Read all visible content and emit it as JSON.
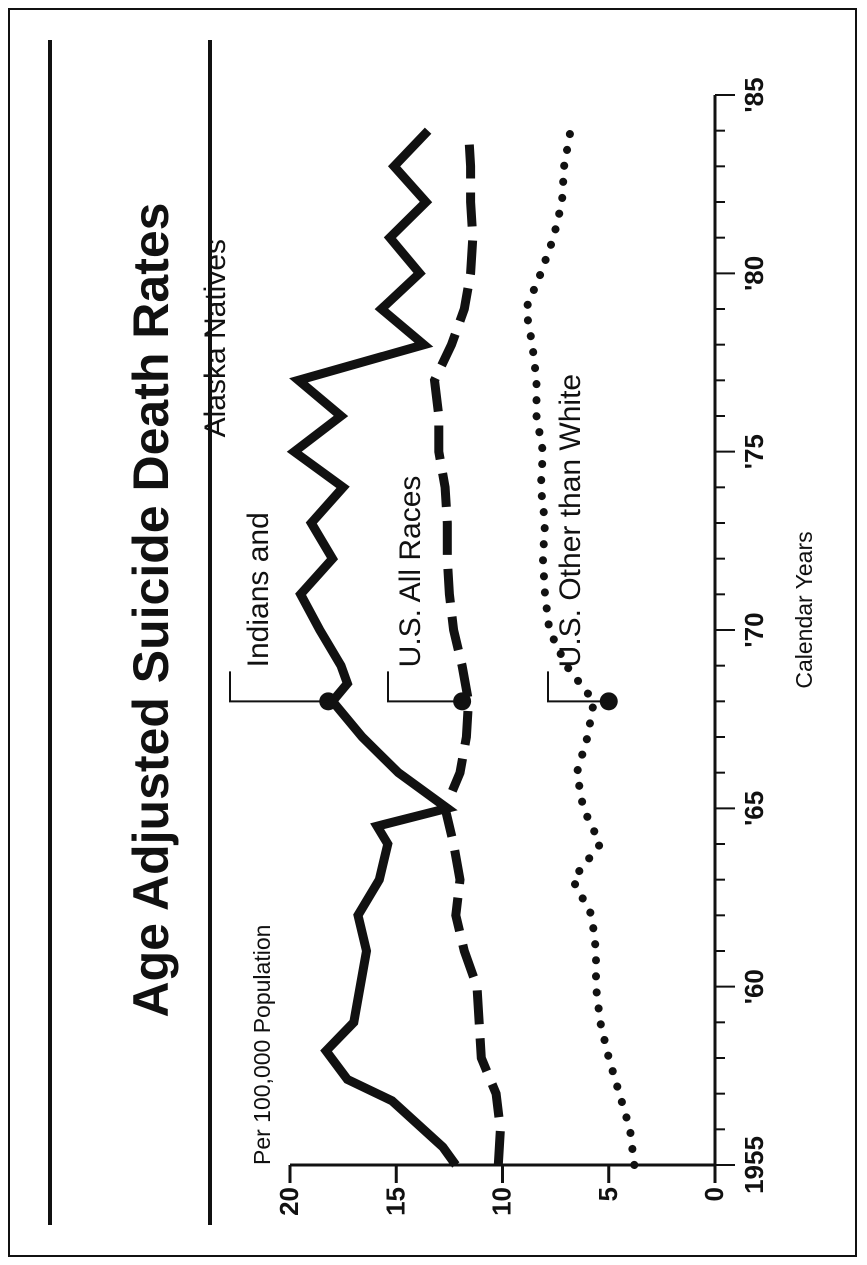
{
  "chart_data": {
    "type": "line",
    "title": "Age Adjusted Suicide Death Rates",
    "ylabel": "Per 100,000 Population",
    "xlabel": "Calendar Years",
    "xlim": [
      1955,
      1985
    ],
    "ylim": [
      0,
      20
    ],
    "x_ticks": [
      1955,
      1960,
      1965,
      1970,
      1975,
      1980,
      1985
    ],
    "x_tick_labels": [
      "1955",
      "'60",
      "'65",
      "'70",
      "'75",
      "'80",
      "'85"
    ],
    "y_ticks": [
      0,
      5,
      10,
      15,
      20
    ],
    "y_tick_labels": [
      "0",
      "5",
      "10",
      "15",
      "20"
    ],
    "grid": false,
    "series": [
      {
        "name": "Indians and Alaska Natives",
        "style": "solid",
        "label_lines": [
          "Indians and",
          "Alaska Natives"
        ],
        "x": [
          1955,
          1955.5,
          1956.8,
          1957.4,
          1958.2,
          1959,
          1961,
          1962,
          1963,
          1964,
          1964.5,
          1965,
          1966,
          1967,
          1968,
          1968.5,
          1969,
          1970,
          1971,
          1972,
          1973,
          1974,
          1975,
          1976,
          1977,
          1978,
          1979,
          1980,
          1981,
          1982,
          1983,
          1984
        ],
        "y": [
          12.2,
          12.8,
          15.2,
          17.3,
          18.3,
          17.0,
          16.4,
          16.8,
          15.8,
          15.4,
          15.9,
          12.6,
          14.9,
          16.6,
          18.0,
          17.3,
          17.6,
          18.6,
          19.5,
          18.0,
          19.0,
          17.5,
          19.8,
          17.6,
          19.6,
          13.7,
          15.7,
          13.9,
          15.3,
          13.6,
          15.1,
          13.5
        ]
      },
      {
        "name": "U.S. All Races",
        "style": "dashed",
        "x": [
          1955,
          1956,
          1957,
          1958,
          1960,
          1961,
          1962,
          1963,
          1964,
          1965,
          1966,
          1967,
          1968,
          1969,
          1970,
          1971,
          1972,
          1973,
          1974,
          1975,
          1976,
          1977,
          1978,
          1979,
          1980,
          1981,
          1982,
          1983,
          1984
        ],
        "y": [
          10.2,
          10.1,
          10.3,
          11.0,
          11.2,
          11.8,
          12.2,
          12.0,
          12.3,
          12.7,
          12.0,
          11.7,
          11.6,
          11.9,
          12.3,
          12.5,
          12.6,
          12.6,
          12.7,
          13.0,
          13.0,
          13.2,
          12.4,
          11.8,
          11.5,
          11.4,
          11.5,
          11.5,
          11.6
        ]
      },
      {
        "name": "U.S. Other than White",
        "style": "dotted",
        "x": [
          1955,
          1956,
          1957,
          1958,
          1959,
          1960,
          1961,
          1962,
          1963,
          1964,
          1965,
          1966,
          1967,
          1968,
          1969,
          1970,
          1971,
          1972,
          1973,
          1974,
          1975,
          1976,
          1977,
          1978,
          1979,
          1980,
          1981,
          1982,
          1983,
          1984
        ],
        "y": [
          3.8,
          4.0,
          4.5,
          5.0,
          5.4,
          5.6,
          5.6,
          5.8,
          6.7,
          5.4,
          6.2,
          6.5,
          6.0,
          5.7,
          7.0,
          7.8,
          8.0,
          8.1,
          8.0,
          8.2,
          8.1,
          8.4,
          8.4,
          8.6,
          8.9,
          8.2,
          7.6,
          7.2,
          7.1,
          6.8
        ]
      }
    ],
    "callouts": [
      {
        "series": 0,
        "x": 1968,
        "y": 18.2
      },
      {
        "series": 1,
        "x": 1968,
        "y": 11.9
      },
      {
        "series": 2,
        "x": 1968,
        "y": 5.0
      }
    ]
  }
}
